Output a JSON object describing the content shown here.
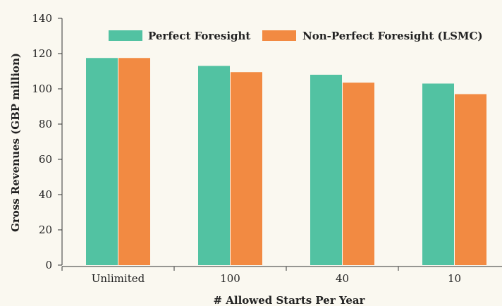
{
  "chart_data": {
    "type": "bar",
    "title": "",
    "xlabel": "# Allowed Starts Per Year",
    "ylabel": "Gross Revenues (GBP million)",
    "categories": [
      "Unlimited",
      "100",
      "40",
      "10"
    ],
    "series": [
      {
        "name": "Perfect Foresight",
        "values": [
          117.5,
          113,
          108,
          103
        ],
        "color": "#52c2a2"
      },
      {
        "name": "Non-Perfect Foresight (LSMC)",
        "values": [
          117.5,
          109.5,
          103.5,
          97
        ],
        "color": "#f28a42"
      }
    ],
    "ylim": [
      0,
      140
    ],
    "yticks": [
      0,
      20,
      40,
      60,
      80,
      100,
      120,
      140
    ],
    "grid": false,
    "legend_position": "top"
  }
}
